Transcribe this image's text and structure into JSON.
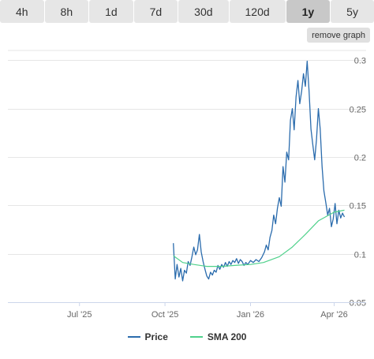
{
  "tabs": [
    {
      "label": "4h",
      "active": false
    },
    {
      "label": "8h",
      "active": false
    },
    {
      "label": "1d",
      "active": false
    },
    {
      "label": "7d",
      "active": false
    },
    {
      "label": "30d",
      "active": false
    },
    {
      "label": "120d",
      "active": false
    },
    {
      "label": "1y",
      "active": true
    },
    {
      "label": "5y",
      "active": false
    }
  ],
  "remove_graph_label": "remove graph",
  "colors": {
    "price": "#2b6cad",
    "sma": "#4fd18b",
    "tab_bg": "#e6e6e6",
    "tab_active_bg": "#c8c8c8"
  },
  "legend": [
    {
      "label": "Price",
      "color": "#2b6cad"
    },
    {
      "label": "SMA 200",
      "color": "#4fd18b"
    }
  ],
  "chart_data": {
    "type": "line",
    "y_ticks": [
      "0.3",
      "0.25",
      "0.2",
      "0.15",
      "0.1",
      "0.05"
    ],
    "y_tick_values": [
      0.3,
      0.25,
      0.2,
      0.15,
      0.1,
      0.05
    ],
    "ylim": [
      0.05,
      0.31
    ],
    "x_ticks": [
      {
        "label": "Jul '25",
        "date": "2025-07-01"
      },
      {
        "label": "Oct '25",
        "date": "2025-10-01"
      },
      {
        "label": "Jan '26",
        "date": "2026-01-01"
      },
      {
        "label": "Apr '26",
        "date": "2026-04-01"
      }
    ],
    "xlim": [
      "2025-04-15",
      "2026-04-15"
    ],
    "grid": true,
    "legend_position": "bottom",
    "series": [
      {
        "name": "Price",
        "color": "#2b6cad",
        "points": [
          [
            "2025-10-10",
            0.111
          ],
          [
            "2025-10-12",
            0.074
          ],
          [
            "2025-10-14",
            0.089
          ],
          [
            "2025-10-16",
            0.076
          ],
          [
            "2025-10-18",
            0.085
          ],
          [
            "2025-10-20",
            0.072
          ],
          [
            "2025-10-22",
            0.083
          ],
          [
            "2025-10-24",
            0.08
          ],
          [
            "2025-10-26",
            0.092
          ],
          [
            "2025-10-28",
            0.088
          ],
          [
            "2025-10-30",
            0.097
          ],
          [
            "2025-11-01",
            0.107
          ],
          [
            "2025-11-03",
            0.099
          ],
          [
            "2025-11-05",
            0.104
          ],
          [
            "2025-11-07",
            0.12
          ],
          [
            "2025-11-09",
            0.102
          ],
          [
            "2025-11-11",
            0.092
          ],
          [
            "2025-11-13",
            0.084
          ],
          [
            "2025-11-15",
            0.077
          ],
          [
            "2025-11-17",
            0.074
          ],
          [
            "2025-11-19",
            0.081
          ],
          [
            "2025-11-21",
            0.078
          ],
          [
            "2025-11-23",
            0.083
          ],
          [
            "2025-11-25",
            0.081
          ],
          [
            "2025-11-27",
            0.088
          ],
          [
            "2025-11-29",
            0.084
          ],
          [
            "2025-12-01",
            0.089
          ],
          [
            "2025-12-03",
            0.086
          ],
          [
            "2025-12-05",
            0.091
          ],
          [
            "2025-12-07",
            0.087
          ],
          [
            "2025-12-09",
            0.092
          ],
          [
            "2025-12-11",
            0.089
          ],
          [
            "2025-12-13",
            0.093
          ],
          [
            "2025-12-15",
            0.091
          ],
          [
            "2025-12-17",
            0.095
          ],
          [
            "2025-12-19",
            0.09
          ],
          [
            "2025-12-21",
            0.094
          ],
          [
            "2025-12-23",
            0.092
          ],
          [
            "2025-12-25",
            0.088
          ],
          [
            "2025-12-27",
            0.091
          ],
          [
            "2025-12-29",
            0.089
          ],
          [
            "2026-01-01",
            0.093
          ],
          [
            "2026-01-04",
            0.091
          ],
          [
            "2026-01-07",
            0.094
          ],
          [
            "2026-01-10",
            0.092
          ],
          [
            "2026-01-13",
            0.096
          ],
          [
            "2026-01-16",
            0.102
          ],
          [
            "2026-01-18",
            0.109
          ],
          [
            "2026-01-20",
            0.104
          ],
          [
            "2026-01-22",
            0.117
          ],
          [
            "2026-01-24",
            0.124
          ],
          [
            "2026-01-26",
            0.14
          ],
          [
            "2026-01-28",
            0.131
          ],
          [
            "2026-01-30",
            0.147
          ],
          [
            "2026-02-01",
            0.158
          ],
          [
            "2026-02-03",
            0.149
          ],
          [
            "2026-02-05",
            0.19
          ],
          [
            "2026-02-07",
            0.174
          ],
          [
            "2026-02-09",
            0.205
          ],
          [
            "2026-02-11",
            0.197
          ],
          [
            "2026-02-13",
            0.238
          ],
          [
            "2026-02-15",
            0.25
          ],
          [
            "2026-02-17",
            0.228
          ],
          [
            "2026-02-19",
            0.262
          ],
          [
            "2026-02-21",
            0.279
          ],
          [
            "2026-02-23",
            0.255
          ],
          [
            "2026-02-25",
            0.268
          ],
          [
            "2026-02-27",
            0.286
          ],
          [
            "2026-03-01",
            0.273
          ],
          [
            "2026-03-03",
            0.299
          ],
          [
            "2026-03-05",
            0.268
          ],
          [
            "2026-03-07",
            0.229
          ],
          [
            "2026-03-09",
            0.213
          ],
          [
            "2026-03-11",
            0.197
          ],
          [
            "2026-03-13",
            0.218
          ],
          [
            "2026-03-15",
            0.25
          ],
          [
            "2026-03-17",
            0.229
          ],
          [
            "2026-03-19",
            0.19
          ],
          [
            "2026-03-21",
            0.165
          ],
          [
            "2026-03-23",
            0.153
          ],
          [
            "2026-03-25",
            0.14
          ],
          [
            "2026-03-27",
            0.147
          ],
          [
            "2026-03-29",
            0.128
          ],
          [
            "2026-03-31",
            0.136
          ],
          [
            "2026-04-02",
            0.152
          ],
          [
            "2026-04-04",
            0.131
          ],
          [
            "2026-04-06",
            0.145
          ],
          [
            "2026-04-08",
            0.137
          ],
          [
            "2026-04-10",
            0.142
          ],
          [
            "2026-04-12",
            0.138
          ]
        ]
      },
      {
        "name": "SMA 200",
        "color": "#4fd18b",
        "points": [
          [
            "2025-10-10",
            0.098
          ],
          [
            "2025-10-20",
            0.091
          ],
          [
            "2025-11-01",
            0.089
          ],
          [
            "2025-11-15",
            0.087
          ],
          [
            "2025-12-01",
            0.087
          ],
          [
            "2025-12-15",
            0.088
          ],
          [
            "2026-01-01",
            0.089
          ],
          [
            "2026-01-15",
            0.091
          ],
          [
            "2026-02-01",
            0.097
          ],
          [
            "2026-02-15",
            0.107
          ],
          [
            "2026-03-01",
            0.12
          ],
          [
            "2026-03-15",
            0.134
          ],
          [
            "2026-04-01",
            0.143
          ],
          [
            "2026-04-12",
            0.145
          ]
        ]
      }
    ]
  }
}
